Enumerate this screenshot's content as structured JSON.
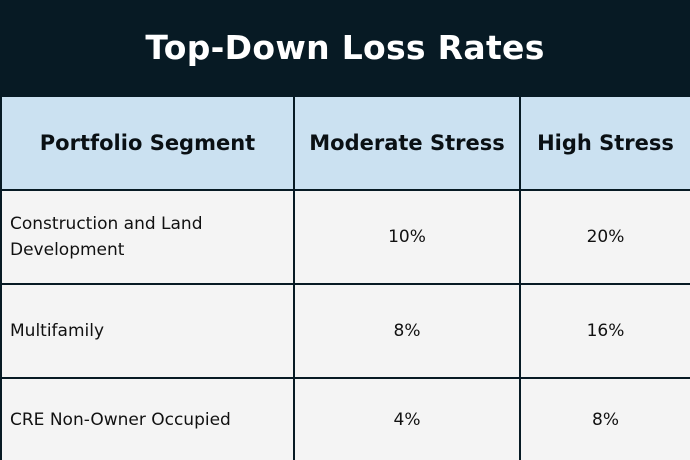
{
  "title": "Top-Down Loss Rates",
  "table": {
    "headers": [
      "Portfolio Segment",
      "Moderate Stress",
      "High Stress"
    ],
    "rows": [
      {
        "segment": "Construction and Land Development",
        "moderate": "10%",
        "high": "20%"
      },
      {
        "segment": "Multifamily",
        "moderate": "8%",
        "high": "16%"
      },
      {
        "segment": "CRE Non-Owner Occupied",
        "moderate": "4%",
        "high": "8%"
      }
    ]
  },
  "colors": {
    "title_background": "#071a24",
    "header_background": "#cbe1f1",
    "cell_background": "#f4f4f4",
    "border": "#071a24"
  }
}
